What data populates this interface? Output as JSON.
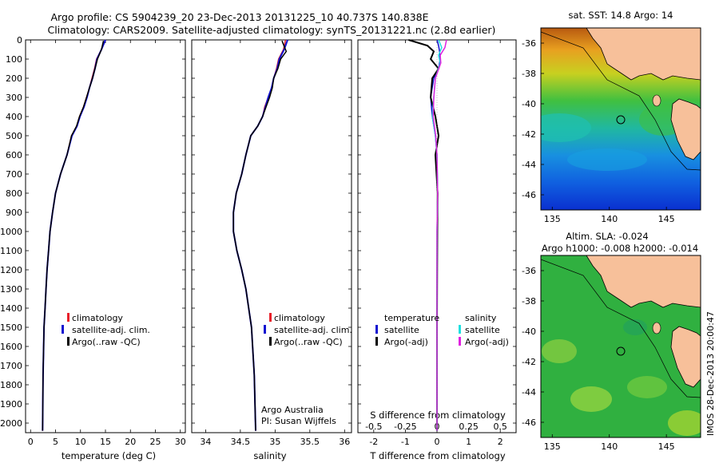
{
  "header": {
    "title_line1": "Argo profile: CS 5904239_20 23-Dec-2013 20131225_10 40.737S 140.838E",
    "title_line2": "Climatology: CARS2009. Satellite-adjusted climatology: synTS_20131221.nc (2.8d earlier)"
  },
  "colors": {
    "climatology": "#e8202a",
    "satellite": "#1010d0",
    "argo": "#000000",
    "sal_satellite": "#20e0e0",
    "sal_argo": "#e020e0"
  },
  "depth_ticks": [
    "0",
    "100",
    "200",
    "300",
    "400",
    "500",
    "600",
    "700",
    "800",
    "900",
    "1000",
    "1100",
    "1200",
    "1300",
    "1400",
    "1500",
    "1600",
    "1700",
    "1800",
    "1900",
    "2000"
  ],
  "panels": {
    "temperature": {
      "xlabel": "temperature (deg C)",
      "xticks": [
        "0",
        "5",
        "10",
        "15",
        "20",
        "25",
        "30"
      ],
      "legend": [
        "climatology",
        "satellite-adj. clim.",
        "Argo(..raw -QC)"
      ]
    },
    "salinity": {
      "xlabel": "salinity",
      "xticks": [
        "34",
        "34.5",
        "35",
        "35.5",
        "36"
      ],
      "legend": [
        "climatology",
        "satellite-adj. clim.",
        "Argo(..raw -QC)"
      ],
      "credit_line1": "Argo Australia",
      "credit_line2": "PI: Susan Wijffels"
    },
    "difference": {
      "xlabel": "T difference from climatology",
      "xticks": [
        "-2",
        "-1",
        "0",
        "1",
        "2"
      ],
      "top_label": "S difference from climatology",
      "top_ticks": [
        "-0.5",
        "-0.25",
        "0",
        "0.25",
        "0.5"
      ],
      "legend_t_title": "temperature",
      "legend_s_title": "salinity",
      "legend_t": [
        "satellite",
        "Argo(-adj)"
      ],
      "legend_s": [
        "satellite",
        "Argo(-adj)"
      ]
    }
  },
  "maps": {
    "sst_title": "sat. SST: 14.8 Argo: 14",
    "sla_title_line1": "Altim. SLA: -0.024",
    "sla_title_line2": "Argo h1000: -0.008 h2000: -0.014",
    "lat_ticks": [
      "-36",
      "-38",
      "-40",
      "-42",
      "-44",
      "-46"
    ],
    "lon_ticks": [
      "135",
      "140",
      "145"
    ]
  },
  "watermark": "IMOS 28-Dec-2013 20:00:47",
  "chart_data": [
    {
      "type": "line",
      "title": "Argo profile: CS 5904239_20 23-Dec-2013 20131225_10 40.737S 140.838E",
      "xlabel": "temperature (deg C)",
      "ylabel": "",
      "xlim": [
        -1,
        31
      ],
      "ylim": [
        2050,
        0
      ],
      "series": [
        {
          "name": "climatology",
          "x": [
            15,
            14.2,
            13.2,
            12.8,
            12.3,
            11.8,
            11.2,
            10.6,
            9.8,
            9.3,
            8.2,
            7.3,
            6.0,
            5.0,
            4.4,
            3.9,
            3.6,
            3.3,
            3.1,
            2.9,
            2.7,
            2.5,
            2.4
          ],
          "y": [
            0,
            50,
            100,
            150,
            200,
            250,
            300,
            350,
            400,
            450,
            500,
            600,
            700,
            800,
            900,
            1000,
            1100,
            1200,
            1300,
            1400,
            1500,
            1750,
            2040
          ]
        },
        {
          "name": "satellite-adj. clim.",
          "x": [
            15,
            14.2,
            13.3,
            12.9,
            12.4,
            11.8,
            11.3,
            10.7,
            9.9,
            9.3,
            8.3,
            7.3,
            6.0,
            5.0,
            4.4,
            3.9,
            3.6,
            3.3,
            3.1,
            2.9,
            2.7,
            2.5,
            2.4
          ],
          "y": [
            0,
            50,
            100,
            150,
            200,
            250,
            300,
            350,
            400,
            450,
            500,
            600,
            700,
            800,
            900,
            1000,
            1100,
            1200,
            1300,
            1400,
            1500,
            1750,
            2040
          ]
        },
        {
          "name": "Argo(..raw -QC)",
          "x": [
            14.6,
            14.2,
            13.4,
            12.9,
            12.4,
            11.8,
            11.2,
            10.6,
            9.8,
            9.2,
            8.2,
            7.3,
            6.0,
            5.0,
            4.4,
            3.9,
            3.6,
            3.3,
            3.1,
            2.9,
            2.7,
            2.5,
            2.4
          ],
          "y": [
            5,
            50,
            100,
            150,
            200,
            250,
            300,
            350,
            400,
            450,
            500,
            600,
            700,
            800,
            900,
            1000,
            1100,
            1200,
            1300,
            1400,
            1500,
            1750,
            2040
          ]
        }
      ]
    },
    {
      "type": "line",
      "xlabel": "salinity",
      "ylabel": "",
      "xlim": [
        33.8,
        36.1
      ],
      "ylim": [
        2050,
        0
      ],
      "series": [
        {
          "name": "climatology",
          "x": [
            35.15,
            35.12,
            35.05,
            35.02,
            34.98,
            34.95,
            34.9,
            34.85,
            34.82,
            34.75,
            34.65,
            34.58,
            34.52,
            34.44,
            34.4,
            34.4,
            34.45,
            34.52,
            34.58,
            34.62,
            34.66,
            34.7,
            34.72
          ],
          "y": [
            0,
            50,
            100,
            150,
            200,
            250,
            300,
            350,
            400,
            450,
            500,
            600,
            700,
            800,
            900,
            1000,
            1100,
            1200,
            1300,
            1400,
            1500,
            1750,
            2040
          ]
        },
        {
          "name": "satellite-adj. clim.",
          "x": [
            35.18,
            35.13,
            35.06,
            35.03,
            34.98,
            34.95,
            34.9,
            34.86,
            34.82,
            34.75,
            34.65,
            34.58,
            34.52,
            34.44,
            34.4,
            34.4,
            34.45,
            34.52,
            34.58,
            34.62,
            34.66,
            34.7,
            34.72
          ],
          "y": [
            0,
            50,
            100,
            150,
            200,
            250,
            300,
            350,
            400,
            450,
            500,
            600,
            700,
            800,
            900,
            1000,
            1100,
            1200,
            1300,
            1400,
            1500,
            1750,
            2040
          ]
        },
        {
          "name": "Argo(..raw -QC)",
          "x": [
            35.1,
            35.16,
            35.08,
            35.04,
            34.98,
            34.96,
            34.92,
            34.87,
            34.82,
            34.75,
            34.65,
            34.58,
            34.52,
            34.44,
            34.4,
            34.4,
            34.45,
            34.52,
            34.58,
            34.62,
            34.66,
            34.7,
            34.72
          ],
          "y": [
            5,
            60,
            100,
            150,
            200,
            250,
            300,
            350,
            400,
            450,
            500,
            600,
            700,
            800,
            900,
            1000,
            1100,
            1200,
            1300,
            1400,
            1500,
            1750,
            2040
          ]
        }
      ]
    },
    {
      "type": "line",
      "xlabel": "T difference from climatology",
      "ylabel": "",
      "xlim": [
        -2.5,
        2.5
      ],
      "ylim": [
        2050,
        0
      ],
      "series": [
        {
          "name": "temperature satellite",
          "x": [
            0,
            0.05,
            0.08,
            0.1,
            0.05,
            -0.1,
            -0.2,
            -0.15,
            -0.05,
            0,
            0.02,
            0.01,
            0,
            0
          ],
          "y": [
            0,
            30,
            60,
            100,
            150,
            200,
            300,
            400,
            500,
            600,
            800,
            1000,
            1500,
            2040
          ]
        },
        {
          "name": "temperature Argo(-adj)",
          "x": [
            -0.9,
            -0.3,
            -0.1,
            -0.2,
            0.05,
            -0.15,
            -0.2,
            -0.05,
            0.05,
            -0.05,
            0.02,
            0.01,
            0,
            0
          ],
          "y": [
            0,
            30,
            60,
            100,
            150,
            200,
            300,
            400,
            500,
            600,
            800,
            1000,
            1500,
            2040
          ]
        },
        {
          "name": "salinity satellite",
          "x": [
            0.05,
            0.15,
            0.05,
            0.1,
            -0.05,
            -0.1,
            -0.15,
            -0.05,
            0,
            0.02,
            0,
            0,
            0
          ],
          "y": [
            0,
            40,
            80,
            120,
            200,
            300,
            400,
            500,
            600,
            800,
            1000,
            1500,
            2040
          ]
        },
        {
          "name": "salinity Argo(-adj)",
          "x": [
            0.3,
            0.25,
            0.1,
            0.12,
            -0.05,
            -0.1,
            -0.12,
            -0.04,
            0,
            0.02,
            0,
            0,
            0
          ],
          "y": [
            0,
            40,
            80,
            120,
            200,
            300,
            400,
            500,
            600,
            800,
            1000,
            1500,
            2040
          ]
        }
      ]
    }
  ]
}
